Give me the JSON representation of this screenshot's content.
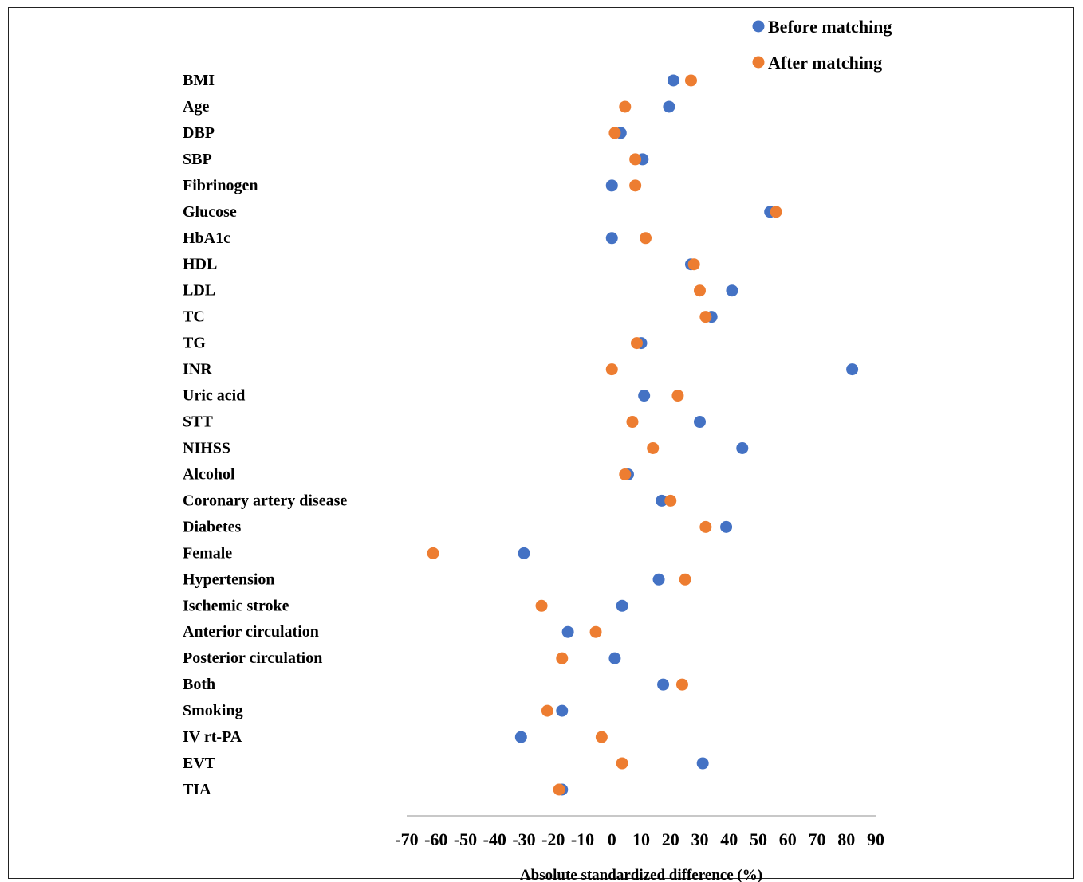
{
  "chart_data": {
    "type": "scatter",
    "xlabel": "Absolute standardized difference (%)",
    "xlim": [
      -70,
      90
    ],
    "xticks": [
      -70,
      -60,
      -50,
      -40,
      -30,
      -20,
      -10,
      0,
      10,
      20,
      30,
      40,
      50,
      60,
      70,
      80,
      90
    ],
    "legend_position": "top-right",
    "grid": false,
    "categories": [
      "BMI",
      "Age",
      "DBP",
      "SBP",
      "Fibrinogen",
      "Glucose",
      "HbA1c",
      "HDL",
      "LDL",
      "TC",
      "TG",
      "INR",
      "Uric acid",
      "STT",
      "NIHSS",
      "Alcohol",
      "Coronary artery disease",
      "Diabetes",
      "Female",
      "Hypertension",
      "Ischemic stroke",
      "Anterior circulation",
      "Posterior circulation",
      "Both",
      "Smoking",
      "IV rt-PA",
      "EVT",
      "TIA"
    ],
    "series": [
      {
        "name": "Before matching",
        "color": "#4472C4",
        "values": [
          21,
          19.5,
          3,
          10.5,
          0,
          54,
          0,
          27,
          41,
          34,
          10,
          82,
          11,
          30,
          44.5,
          5.5,
          17,
          39,
          -30,
          16,
          3.5,
          -15,
          1,
          17.5,
          -17,
          -31,
          31,
          -17
        ]
      },
      {
        "name": "After matching",
        "color": "#ED7D31",
        "values": [
          27,
          4.5,
          1,
          8,
          8,
          56,
          11.5,
          28,
          30,
          32,
          8.5,
          0,
          22.5,
          7,
          14,
          4.5,
          20,
          32,
          -61,
          25,
          -24,
          -5.5,
          -17,
          24,
          -22,
          -3.5,
          3.5,
          -18
        ]
      }
    ]
  }
}
